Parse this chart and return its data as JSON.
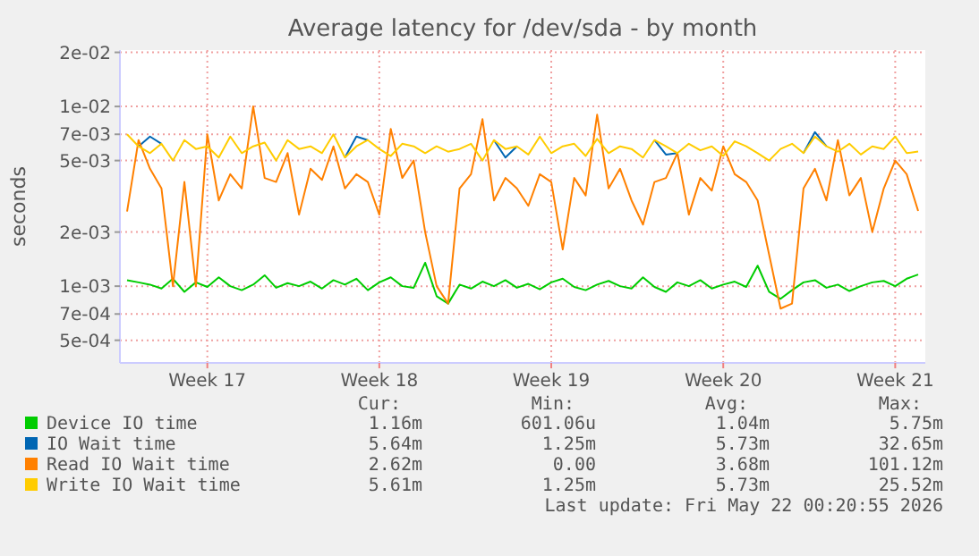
{
  "chart_data": {
    "type": "line",
    "title": "Average latency for /dev/sda - by month",
    "ylabel": "seconds",
    "log": true,
    "grid": true,
    "legend": "bottom",
    "categories": [
      null,
      null,
      null,
      null,
      null,
      null,
      null,
      "Week 17",
      null,
      null,
      null,
      null,
      null,
      null,
      null,
      null,
      null,
      null,
      null,
      null,
      null,
      null,
      "Week 18",
      null,
      null,
      null,
      null,
      null,
      null,
      null,
      null,
      null,
      null,
      null,
      null,
      null,
      null,
      "Week 19",
      null,
      null,
      null,
      null,
      null,
      null,
      null,
      null,
      null,
      null,
      null,
      null,
      null,
      null,
      "Week 20",
      null,
      null,
      null,
      null,
      null,
      null,
      null,
      null,
      null,
      null,
      null,
      null,
      null,
      null,
      "Week 21",
      null,
      null
    ],
    "ylim": [
      0.000374,
      0.0206
    ],
    "yticks": [
      {
        "value": 0.0005,
        "label": "5e-04"
      },
      {
        "value": 0.0007,
        "label": "7e-04"
      },
      {
        "value": 0.001,
        "label": "1e-03"
      },
      {
        "value": 0.002,
        "label": "2e-03"
      },
      {
        "value": 0.005,
        "label": "5e-03"
      },
      {
        "value": 0.007,
        "label": "7e-03"
      },
      {
        "value": 0.01,
        "label": "1e-02"
      },
      {
        "value": 0.02,
        "label": "2e-02"
      }
    ],
    "series": [
      {
        "name": "Device IO time",
        "color": "#00cc00",
        "values": [
          0.00108,
          0.00105,
          0.00102,
          0.00097,
          0.0011,
          0.00093,
          0.00105,
          0.00099,
          0.00112,
          0.001,
          0.00095,
          0.00102,
          0.00115,
          0.00098,
          0.00104,
          0.001,
          0.00106,
          0.00097,
          0.00108,
          0.00102,
          0.0011,
          0.00095,
          0.00105,
          0.00112,
          0.001,
          0.00098,
          0.00135,
          0.00088,
          0.0008,
          0.00102,
          0.00097,
          0.00106,
          0.001,
          0.00108,
          0.00098,
          0.00103,
          0.00096,
          0.00105,
          0.0011,
          0.00099,
          0.00095,
          0.00102,
          0.00107,
          0.001,
          0.00097,
          0.00112,
          0.00099,
          0.00093,
          0.00105,
          0.001,
          0.00108,
          0.00097,
          0.00102,
          0.00106,
          0.00099,
          0.0013,
          0.00093,
          0.00085,
          0.00095,
          0.00105,
          0.00108,
          0.00098,
          0.00102,
          0.00094,
          0.001,
          0.00105,
          0.00107,
          0.001,
          0.0011,
          0.00116
        ]
      },
      {
        "name": "IO Wait time",
        "color": "#0066b3",
        "values": [
          null,
          0.006,
          0.0068,
          0.0062,
          null,
          null,
          null,
          null,
          null,
          null,
          null,
          null,
          null,
          null,
          null,
          null,
          null,
          null,
          null,
          0.0052,
          0.0068,
          0.0065,
          null,
          null,
          null,
          null,
          null,
          null,
          null,
          null,
          null,
          null,
          0.0065,
          0.0052,
          0.006,
          null,
          null,
          null,
          null,
          null,
          null,
          null,
          null,
          null,
          null,
          null,
          0.0065,
          0.0054,
          0.0055,
          null,
          null,
          null,
          null,
          null,
          null,
          null,
          null,
          null,
          null,
          0.0055,
          0.0072,
          0.006,
          null,
          null,
          null,
          null,
          null,
          null,
          null,
          null
        ]
      },
      {
        "name": "Read IO Wait time",
        "color": "#ff8000",
        "values": [
          0.0026,
          0.0065,
          0.0045,
          0.0035,
          0.001,
          0.0038,
          0.001,
          0.007,
          0.003,
          0.0042,
          0.0035,
          0.01,
          0.004,
          0.0038,
          0.0055,
          0.0025,
          0.0045,
          0.0039,
          0.006,
          0.0035,
          0.0042,
          0.0038,
          0.0025,
          0.0075,
          0.004,
          0.005,
          0.002,
          0.001,
          0.0008,
          0.0035,
          0.0042,
          0.0085,
          0.003,
          0.004,
          0.0035,
          0.0028,
          0.0042,
          0.0038,
          0.0016,
          0.004,
          0.0032,
          0.009,
          0.0035,
          0.0045,
          0.003,
          0.0022,
          0.0038,
          0.004,
          0.0055,
          0.0025,
          0.004,
          0.0034,
          0.006,
          0.0042,
          0.0038,
          0.003,
          0.0015,
          0.00075,
          0.0008,
          0.0035,
          0.0045,
          0.003,
          0.0065,
          0.0032,
          0.004,
          0.002,
          0.0035,
          0.005,
          0.0042,
          0.00262
        ]
      },
      {
        "name": "Write IO Wait time",
        "color": "#ffcc00",
        "values": [
          0.007,
          0.006,
          0.0055,
          0.0062,
          0.005,
          0.0065,
          0.0058,
          0.006,
          0.0052,
          0.0068,
          0.0055,
          0.006,
          0.0063,
          0.005,
          0.0065,
          0.0058,
          0.006,
          0.0055,
          0.007,
          0.0052,
          0.006,
          0.0065,
          0.0058,
          0.0053,
          0.0062,
          0.006,
          0.0055,
          0.006,
          0.0056,
          0.0058,
          0.0062,
          0.005,
          0.0065,
          0.0058,
          0.006,
          0.0054,
          0.0068,
          0.0055,
          0.006,
          0.0062,
          0.0053,
          0.0066,
          0.0055,
          0.006,
          0.0058,
          0.0052,
          0.0065,
          0.006,
          0.0055,
          0.0062,
          0.0057,
          0.006,
          0.0053,
          0.0064,
          0.006,
          0.0055,
          0.005,
          0.0058,
          0.0062,
          0.0055,
          0.0068,
          0.006,
          0.0056,
          0.0062,
          0.0054,
          0.006,
          0.0058,
          0.0068,
          0.0055,
          0.00561
        ]
      }
    ],
    "annotations": [
      "Cur:",
      "Min:",
      "Avg:",
      "Max:",
      "1.16m",
      "601.06u",
      "1.04m",
      "5.75m",
      "5.64m",
      "1.25m",
      "5.73m",
      "32.65m",
      "2.62m",
      "0.00",
      "3.68m",
      "101.12m",
      "5.61m",
      "1.25m",
      "5.73m",
      "25.52m",
      "Last update: Fri May 22 00:20:55 2026"
    ]
  }
}
